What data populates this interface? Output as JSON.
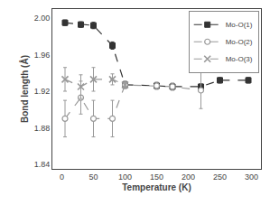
{
  "chart_data": {
    "type": "line",
    "xlabel": "Temperature (K)",
    "ylabel": "Bond length (Å)",
    "xlim": [
      -15,
      315
    ],
    "xticks": [
      0,
      50,
      100,
      150,
      200,
      250,
      300
    ],
    "ylim": [
      1.835,
      2.01
    ],
    "yticks": [
      1.84,
      1.88,
      1.92,
      1.96,
      {
        "value": 2.0,
        "label": "2.00"
      }
    ],
    "grid": false,
    "legend": "upper right",
    "line_style": "dashed",
    "series": [
      {
        "name": "Mo-O(1)",
        "color": "#333333",
        "marker": "square",
        "x": [
          5,
          30,
          50,
          80,
          100,
          150,
          175,
          220,
          250,
          295
        ],
        "values": [
          1.995,
          1.993,
          1.992,
          1.97,
          1.927,
          1.926,
          1.925,
          1.925,
          1.932,
          1.932
        ],
        "yerr": [
          0.003,
          0.003,
          0.0035,
          0.004,
          0.003,
          0.003,
          0.003,
          0.003,
          0.003,
          0.003
        ]
      },
      {
        "name": "Mo-O(2)",
        "color": "#999999",
        "marker": "open_circle",
        "x": [
          5,
          30,
          50,
          80,
          100,
          150,
          175,
          220
        ],
        "values": [
          1.89,
          1.913,
          1.89,
          1.89,
          1.927,
          1.926,
          1.925,
          1.921
        ],
        "yerr": [
          0.02,
          0.018,
          0.02,
          0.02,
          0.004,
          0.004,
          0.004,
          0.02
        ]
      },
      {
        "name": "Mo-O(3)",
        "color": "#999999",
        "marker": "x",
        "x": [
          5,
          30,
          50,
          80,
          100
        ],
        "values": [
          1.933,
          1.925,
          1.933,
          1.933,
          1.927
        ],
        "yerr": [
          0.013,
          0.013,
          0.013,
          0.006,
          0.004
        ]
      }
    ]
  }
}
